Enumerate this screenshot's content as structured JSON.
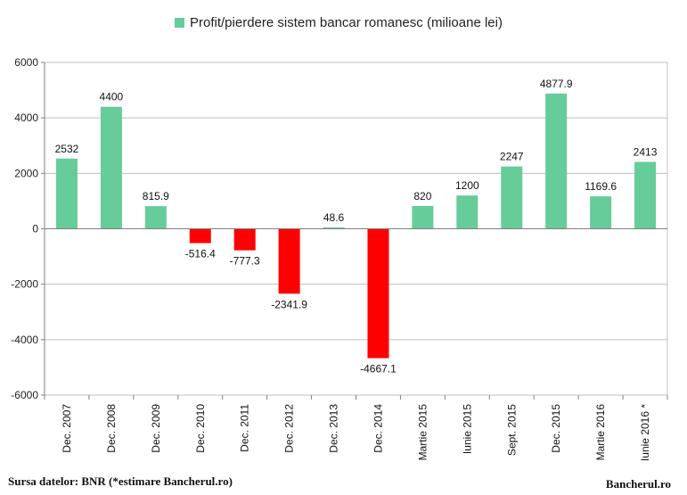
{
  "chart_data": {
    "type": "bar",
    "title": "",
    "legend": {
      "label": "Profit/pierdere sistem bancar romanesc (milioane lei)",
      "placement": "top"
    },
    "categories": [
      "Dec. 2007",
      "Dec. 2008",
      "Dec. 2009",
      "Dec. 2010",
      "Dec. 2011",
      "Dec. 2012",
      "Dec. 2013",
      "Dec. 2014",
      "Martie 2015",
      "Iunie 2015",
      "Sept. 2015",
      "Dec. 2015",
      "Martie 2016",
      "Iunie 2016 *"
    ],
    "values": [
      2532,
      4400,
      815.9,
      -516.4,
      -777.3,
      -2341.9,
      48.6,
      -4667.1,
      820,
      1200,
      2247,
      4877.9,
      1169.6,
      2413
    ],
    "value_labels": [
      "2532",
      "4400",
      "815.9",
      "-516.4",
      "-777.3",
      "-2341.9",
      "48.6",
      "-4667.1",
      "820",
      "1200",
      "2247",
      "4877.9",
      "1169.6",
      "2413"
    ],
    "ylim": [
      -6000,
      6000
    ],
    "yticks": [
      6000,
      4000,
      2000,
      0,
      -2000,
      -4000,
      -6000
    ],
    "ytick_labels": [
      "6000",
      "4000",
      "2000",
      "0",
      "-2000",
      "-4000",
      "-6000"
    ],
    "grid": true,
    "colors": {
      "positive": "#66cc99",
      "negative": "#ff0000",
      "grid": "#bfbfbf",
      "axis": "#808080"
    }
  },
  "footer": {
    "source": "Sursa datelor: BNR (*estimare Bancherul.ro)",
    "brand": "Bancherul.ro"
  }
}
